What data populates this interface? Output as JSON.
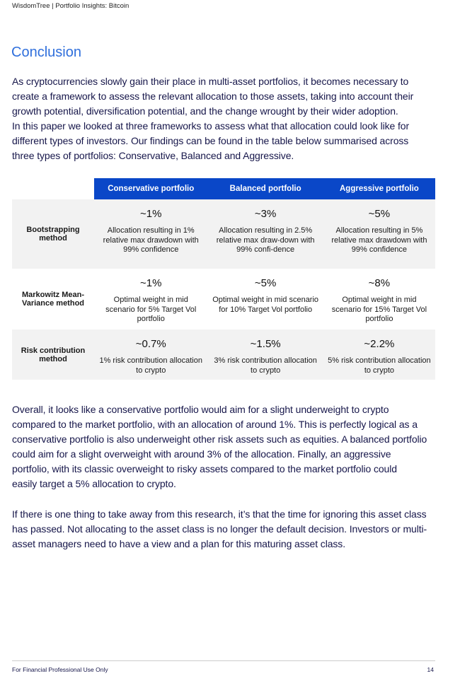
{
  "header": "WisdomTree | Portfolio Insights: Bitcoin",
  "title": "Conclusion",
  "paragraphs": [
    [
      "As cryptocurrencies slowly gain their place in multi-asset portfolios, it becomes necessary to",
      "create a framework to assess the relevant allocation to those assets, taking into account their",
      "growth potential, diversification potential, and the change wrought by their wider adoption.",
      "In this paper we looked at three frameworks to assess what that allocation could look like for",
      "different types of investors. Our findings can be found in the table below summarised across",
      "three types of portfolios: Conservative, Balanced and Aggressive."
    ],
    [
      "Overall, it looks like a conservative portfolio would aim for a slight underweight to crypto",
      "compared to the market portfolio, with an allocation of around 1%. This is perfectly logical as a",
      "conservative portfolio is also underweight other risk assets such as equities. A balanced portfolio",
      "could aim for a slight overweight with around 3% of the allocation. Finally, an aggressive",
      "portfolio, with its classic overweight to risky assets compared to the market portfolio could",
      "easily target a 5% allocation to crypto."
    ],
    [
      "If there is one thing to take away from this research, it’s that the time for ignoring this asset class",
      "has passed. Not allocating to the asset class is no longer the default decision. Investors or multi-",
      "asset managers need to have a view and a plan for this maturing asset class."
    ]
  ],
  "table": {
    "headers": [
      "Conservative portfolio",
      "Balanced portfolio",
      "Aggressive portfolio"
    ],
    "rows": [
      {
        "label": "Bootstrapping method",
        "cells": [
          {
            "value": "~1%",
            "desc": "Allocation resulting in 1% relative max drawdown with 99% confidence"
          },
          {
            "value": "~3%",
            "desc": "Allocation resulting in 2.5% relative max draw-down with 99% confi-dence"
          },
          {
            "value": "~5%",
            "desc": "Allocation resulting in 5% relative max drawdown with 99% confidence"
          }
        ]
      },
      {
        "label": "Markowitz Mean-Variance method",
        "cells": [
          {
            "value": "~1%",
            "desc": "Optimal weight in mid scenario for 5% Target Vol portfolio"
          },
          {
            "value": "~5%",
            "desc": "Optimal weight in mid scenario for 10% Target Vol portfolio"
          },
          {
            "value": "~8%",
            "desc": "Optimal weight in mid scenario for 15% Target Vol portfolio"
          }
        ]
      },
      {
        "label": "Risk contribution method",
        "cells": [
          {
            "value": "~0.7%",
            "desc": "1% risk contribution allocation to crypto"
          },
          {
            "value": "~1.5%",
            "desc": "3% risk contribution allocation to crypto"
          },
          {
            "value": "~2.2%",
            "desc": "5% risk contribution allocation to crypto"
          }
        ]
      }
    ]
  },
  "footer": {
    "text": "For Financial Professional Use Only",
    "page": "14"
  },
  "colors": {
    "title": "#2f6fdc",
    "table_header": "#0a47c8",
    "body_text": "#16164a"
  }
}
